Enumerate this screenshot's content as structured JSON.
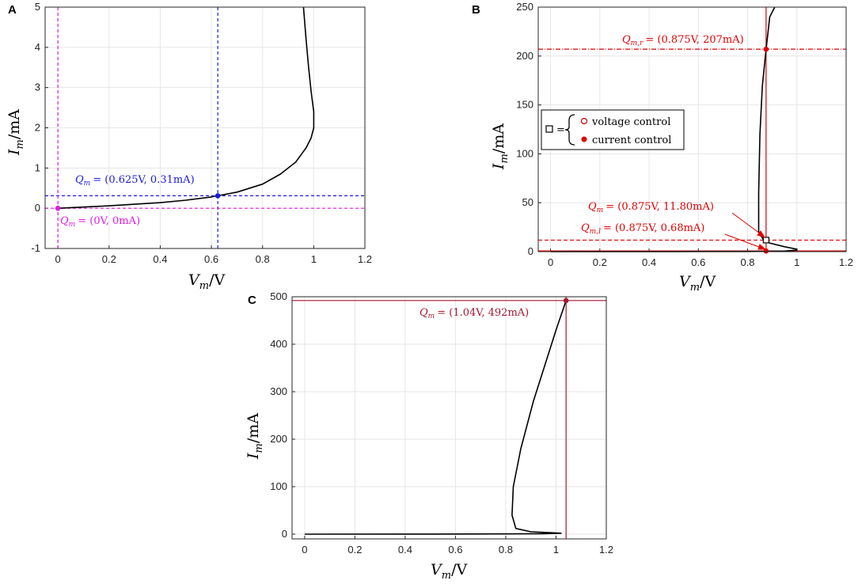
{
  "chart_data": [
    {
      "panel": "A",
      "type": "line",
      "xlabel": "V_m/V",
      "ylabel": "I_m/mA",
      "xlim": [
        -0.05,
        1.2
      ],
      "ylim": [
        -1,
        5
      ],
      "xticks": [
        "0",
        "0.2",
        "0.4",
        "0.6",
        "0.8",
        "1",
        "1.2"
      ],
      "yticks": [
        "-1",
        "0",
        "1",
        "2",
        "3",
        "4",
        "5"
      ],
      "grid": true,
      "series": [
        {
          "color": "#000000",
          "x": [
            0,
            0.2,
            0.4,
            0.5,
            0.6,
            0.625,
            0.7,
            0.8,
            0.87,
            0.93,
            0.97,
            0.99,
            1.0,
            1.0,
            0.99,
            0.98,
            0.97,
            0.96
          ],
          "y": [
            0,
            0.06,
            0.14,
            0.2,
            0.28,
            0.31,
            0.4,
            0.6,
            0.85,
            1.15,
            1.5,
            1.75,
            2.0,
            2.4,
            2.9,
            3.5,
            4.2,
            5.0
          ]
        }
      ],
      "points": [
        {
          "label": "Q_m = (0.625V, 0.31mA)",
          "x": 0.625,
          "y": 0.31,
          "color": "#1a1ae6",
          "style": "dashed-crosshair"
        },
        {
          "label": "Q_m = (0V, 0mA)",
          "x": 0,
          "y": 0,
          "color": "#e21be2",
          "style": "dashed-crosshair"
        }
      ]
    },
    {
      "panel": "B",
      "type": "line",
      "xlabel": "V_m/V",
      "ylabel": "I_m/mA",
      "xlim": [
        -0.05,
        1.2
      ],
      "ylim": [
        0,
        250
      ],
      "xticks": [
        "0",
        "0.2",
        "0.4",
        "0.6",
        "0.8",
        "1",
        "1.2"
      ],
      "yticks": [
        "0",
        "50",
        "100",
        "150",
        "200",
        "250"
      ],
      "grid": true,
      "series": [
        {
          "color": "#000000",
          "x": [
            0,
            0.5,
            0.8,
            0.95,
            1.0,
            1.0,
            0.95,
            0.87,
            0.845,
            0.845,
            0.85,
            0.86,
            0.875,
            0.89,
            0.91
          ],
          "y": [
            0,
            0.05,
            0.2,
            0.6,
            1.5,
            2.5,
            5,
            10,
            20,
            60,
            120,
            170,
            207,
            240,
            250
          ]
        }
      ],
      "points": [
        {
          "label": "Q_{m,r} = (0.875V, 207mA)",
          "x": 0.875,
          "y": 207,
          "color": "#e00000",
          "marker": "filled"
        },
        {
          "label": "Q_m = (0.875V, 11.80mA)",
          "x": 0.875,
          "y": 11.8,
          "color": "#000000",
          "marker": "square"
        },
        {
          "label": "Q_{m,l} = (0.875V, 0.68mA)",
          "x": 0.875,
          "y": 0.68,
          "color": "#e00000",
          "marker": "filled"
        }
      ],
      "legend": {
        "placement": "left-middle",
        "entries": [
          "voltage control",
          "current control"
        ]
      }
    },
    {
      "panel": "C",
      "type": "line",
      "xlabel": "V_m/V",
      "ylabel": "I_m/mA",
      "xlim": [
        -0.05,
        1.2
      ],
      "ylim": [
        -10,
        500
      ],
      "xticks": [
        "0",
        "0.2",
        "0.4",
        "0.6",
        "0.8",
        "1",
        "1.2"
      ],
      "yticks": [
        "0",
        "100",
        "200",
        "300",
        "400",
        "500"
      ],
      "grid": true,
      "series": [
        {
          "color": "#000000",
          "x": [
            0,
            0.5,
            0.8,
            0.95,
            1.02,
            0.98,
            0.9,
            0.84,
            0.825,
            0.83,
            0.86,
            0.91,
            0.97,
            1.0,
            1.04
          ],
          "y": [
            0,
            0.2,
            0.5,
            1,
            2,
            3,
            5,
            12,
            40,
            100,
            180,
            280,
            380,
            430,
            492
          ]
        }
      ],
      "points": [
        {
          "label": "Q_m = (1.04V, 492mA)",
          "x": 1.04,
          "y": 492,
          "color": "#a6192e",
          "marker": "filled"
        }
      ]
    }
  ],
  "panels": {
    "a": {
      "letter": "A",
      "q1_var": "Q",
      "q1_sub": "m",
      "q1_val": "= (0.625V, 0.31mA)",
      "q2_var": "Q",
      "q2_sub": "m",
      "q2_val": "= (0V, 0mA)"
    },
    "b": {
      "letter": "B",
      "qr_var": "Q",
      "qr_sub": "m,r",
      "qr_val": "= (0.875V, 207mA)",
      "q_var": "Q",
      "q_sub": "m",
      "q_val": "= (0.875V, 11.80mA)",
      "ql_var": "Q",
      "ql_sub": "m,l",
      "ql_val": "= (0.875V, 0.68mA)",
      "leg_eq": "=",
      "leg_voltage": "voltage control",
      "leg_current": "current control"
    },
    "c": {
      "letter": "C",
      "q_var": "Q",
      "q_sub": "m",
      "q_val": "= (1.04V, 492mA)"
    }
  },
  "axis_text": {
    "x_var": "V",
    "x_sub": "m",
    "x_unit": "/V",
    "y_var": "I",
    "y_sub": "m",
    "y_unit": "/mA"
  },
  "colors": {
    "blue": "#1a1ae6",
    "magenta": "#e21be2",
    "red": "#e00000",
    "dark_red": "#a6192e",
    "grid": "#e6e6e6",
    "axis": "#262626"
  }
}
